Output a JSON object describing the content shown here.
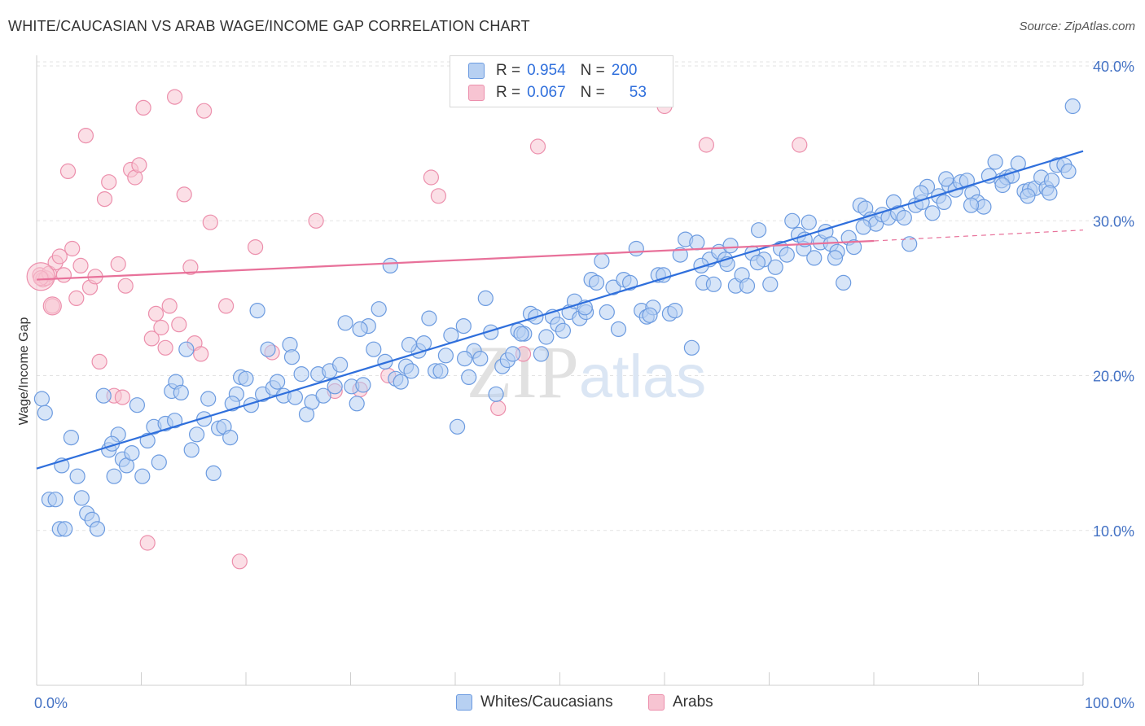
{
  "title": "WHITE/CAUCASIAN VS ARAB WAGE/INCOME GAP CORRELATION CHART",
  "source": "Source: ZipAtlas.com",
  "watermark": "ZIPatlas",
  "legend": {
    "row1": {
      "r_label": "R =",
      "r_value": "0.954",
      "n_label": "N =",
      "n_value": "200"
    },
    "row2": {
      "r_label": "R =",
      "r_value": "0.067",
      "n_label": "N =",
      "n_value": "53"
    }
  },
  "bottom_legend": {
    "series1": "Whites/Caucasians",
    "series2": "Arabs"
  },
  "colors": {
    "blue": "#2f6fdc",
    "blue_fill": "#b7d0f2",
    "blue_stroke": "#6c9be0",
    "pink": "#e8719a",
    "pink_fill": "#f7c4d2",
    "pink_stroke": "#ec8fac",
    "grid": "#e3e3e3",
    "axis_label": "#4472c4"
  },
  "chart_data": {
    "type": "scatter",
    "title": "WHITE/CAUCASIAN VS ARAB WAGE/INCOME GAP CORRELATION CHART",
    "xlabel": "",
    "ylabel": "Wage/Income Gap",
    "xlim": [
      0,
      100
    ],
    "ylim": [
      0,
      41
    ],
    "x_tick_labels": [
      "0.0%",
      "100.0%"
    ],
    "y_ticks": [
      10,
      20,
      30,
      40
    ],
    "y_tick_labels": [
      "10.0%",
      "20.0%",
      "30.0%",
      "40.0%"
    ],
    "grid": true,
    "legend_position": "top-center",
    "series": [
      {
        "name": "Whites/Caucasians",
        "color": "#2f6fdc",
        "R": 0.954,
        "N": 200,
        "trend": {
          "x": [
            0,
            100
          ],
          "y": [
            14.0,
            34.5
          ]
        },
        "points": [
          [
            0.5,
            18.5
          ],
          [
            0.8,
            17.6
          ],
          [
            1.2,
            12.0
          ],
          [
            1.8,
            12.0
          ],
          [
            2.2,
            10.1
          ],
          [
            2.7,
            10.1
          ],
          [
            3.3,
            16.0
          ],
          [
            3.9,
            13.5
          ],
          [
            4.3,
            12.1
          ],
          [
            4.8,
            11.1
          ],
          [
            5.3,
            10.7
          ],
          [
            5.8,
            10.1
          ],
          [
            6.4,
            18.7
          ],
          [
            6.9,
            15.2
          ],
          [
            7.4,
            13.5
          ],
          [
            7.8,
            16.2
          ],
          [
            8.2,
            14.6
          ],
          [
            8.6,
            14.2
          ],
          [
            9.1,
            15.0
          ],
          [
            9.6,
            18.1
          ],
          [
            10.1,
            13.5
          ],
          [
            10.6,
            15.8
          ],
          [
            11.2,
            16.7
          ],
          [
            11.7,
            14.4
          ],
          [
            12.3,
            16.9
          ],
          [
            12.9,
            19.0
          ],
          [
            13.3,
            19.6
          ],
          [
            13.8,
            18.9
          ],
          [
            14.3,
            21.7
          ],
          [
            14.8,
            15.2
          ],
          [
            15.3,
            16.2
          ],
          [
            16.0,
            17.2
          ],
          [
            16.4,
            18.5
          ],
          [
            16.9,
            13.7
          ],
          [
            17.4,
            16.6
          ],
          [
            17.9,
            16.7
          ],
          [
            18.5,
            16.0
          ],
          [
            19.1,
            18.8
          ],
          [
            19.5,
            19.9
          ],
          [
            20.0,
            19.8
          ],
          [
            20.5,
            18.1
          ],
          [
            21.1,
            24.2
          ],
          [
            21.6,
            18.8
          ],
          [
            22.1,
            21.7
          ],
          [
            22.6,
            19.2
          ],
          [
            23.0,
            19.6
          ],
          [
            23.6,
            18.7
          ],
          [
            24.2,
            22.0
          ],
          [
            24.7,
            18.6
          ],
          [
            25.3,
            20.1
          ],
          [
            25.8,
            17.5
          ],
          [
            26.3,
            18.3
          ],
          [
            26.9,
            20.1
          ],
          [
            27.4,
            18.7
          ],
          [
            28.0,
            20.3
          ],
          [
            28.5,
            19.3
          ],
          [
            29.0,
            20.7
          ],
          [
            29.5,
            23.4
          ],
          [
            30.1,
            19.3
          ],
          [
            30.6,
            18.2
          ],
          [
            31.2,
            19.4
          ],
          [
            31.7,
            23.2
          ],
          [
            32.2,
            21.7
          ],
          [
            32.7,
            24.3
          ],
          [
            33.3,
            20.9
          ],
          [
            33.8,
            27.1
          ],
          [
            34.3,
            19.8
          ],
          [
            34.8,
            19.6
          ],
          [
            35.3,
            20.6
          ],
          [
            35.8,
            20.3
          ],
          [
            36.5,
            21.6
          ],
          [
            37.0,
            22.1
          ],
          [
            37.5,
            23.7
          ],
          [
            38.1,
            20.3
          ],
          [
            38.6,
            20.3
          ],
          [
            39.1,
            21.3
          ],
          [
            39.6,
            22.6
          ],
          [
            40.2,
            16.7
          ],
          [
            40.8,
            23.2
          ],
          [
            41.3,
            19.9
          ],
          [
            41.8,
            21.6
          ],
          [
            42.4,
            21.1
          ],
          [
            42.9,
            25.0
          ],
          [
            43.4,
            22.8
          ],
          [
            43.9,
            18.8
          ],
          [
            44.5,
            20.6
          ],
          [
            45.0,
            21.0
          ],
          [
            45.5,
            21.4
          ],
          [
            46.0,
            22.9
          ],
          [
            46.6,
            22.7
          ],
          [
            47.2,
            24.0
          ],
          [
            47.7,
            23.8
          ],
          [
            48.2,
            21.4
          ],
          [
            48.7,
            22.5
          ],
          [
            49.3,
            23.8
          ],
          [
            49.8,
            23.3
          ],
          [
            50.3,
            22.9
          ],
          [
            50.9,
            24.1
          ],
          [
            51.4,
            24.8
          ],
          [
            51.9,
            23.7
          ],
          [
            52.5,
            24.1
          ],
          [
            53.0,
            26.2
          ],
          [
            53.5,
            26.0
          ],
          [
            54.0,
            27.4
          ],
          [
            54.5,
            24.1
          ],
          [
            55.1,
            25.7
          ],
          [
            55.6,
            23.0
          ],
          [
            56.1,
            26.2
          ],
          [
            56.7,
            26.0
          ],
          [
            57.3,
            28.2
          ],
          [
            57.8,
            24.2
          ],
          [
            58.3,
            23.8
          ],
          [
            58.9,
            24.4
          ],
          [
            59.4,
            26.5
          ],
          [
            59.9,
            26.5
          ],
          [
            60.5,
            24.0
          ],
          [
            61.0,
            24.2
          ],
          [
            61.5,
            27.8
          ],
          [
            62.0,
            28.8
          ],
          [
            62.6,
            21.8
          ],
          [
            63.1,
            28.6
          ],
          [
            63.7,
            26.0
          ],
          [
            64.3,
            27.5
          ],
          [
            64.7,
            25.9
          ],
          [
            65.2,
            28.0
          ],
          [
            65.8,
            27.5
          ],
          [
            66.3,
            28.4
          ],
          [
            66.8,
            25.8
          ],
          [
            67.4,
            26.5
          ],
          [
            67.9,
            25.8
          ],
          [
            68.4,
            27.9
          ],
          [
            69.0,
            29.4
          ],
          [
            69.5,
            27.5
          ],
          [
            70.1,
            25.9
          ],
          [
            70.6,
            27.0
          ],
          [
            71.1,
            28.2
          ],
          [
            71.7,
            27.8
          ],
          [
            72.2,
            30.0
          ],
          [
            72.8,
            29.1
          ],
          [
            73.3,
            28.2
          ],
          [
            73.8,
            29.9
          ],
          [
            74.3,
            27.6
          ],
          [
            74.9,
            28.6
          ],
          [
            75.4,
            29.3
          ],
          [
            75.9,
            28.5
          ],
          [
            76.5,
            28.0
          ],
          [
            77.1,
            26.0
          ],
          [
            77.6,
            28.9
          ],
          [
            78.1,
            28.3
          ],
          [
            78.7,
            31.0
          ],
          [
            79.2,
            30.8
          ],
          [
            79.7,
            30.1
          ],
          [
            80.2,
            29.8
          ],
          [
            80.8,
            30.4
          ],
          [
            81.4,
            30.2
          ],
          [
            81.9,
            31.2
          ],
          [
            82.3,
            30.5
          ],
          [
            82.9,
            30.2
          ],
          [
            83.4,
            28.5
          ],
          [
            84.0,
            31.0
          ],
          [
            84.6,
            31.2
          ],
          [
            85.1,
            32.2
          ],
          [
            85.6,
            30.5
          ],
          [
            86.2,
            31.6
          ],
          [
            86.7,
            31.2
          ],
          [
            87.2,
            32.3
          ],
          [
            87.8,
            32.0
          ],
          [
            88.3,
            32.5
          ],
          [
            88.9,
            32.6
          ],
          [
            89.4,
            31.8
          ],
          [
            89.9,
            31.2
          ],
          [
            90.5,
            30.9
          ],
          [
            91.0,
            32.9
          ],
          [
            91.6,
            33.8
          ],
          [
            92.2,
            32.6
          ],
          [
            92.7,
            32.8
          ],
          [
            93.2,
            32.9
          ],
          [
            93.8,
            33.7
          ],
          [
            94.4,
            31.9
          ],
          [
            94.9,
            32.0
          ],
          [
            95.4,
            32.1
          ],
          [
            96.0,
            32.8
          ],
          [
            96.5,
            32.1
          ],
          [
            97.0,
            32.6
          ],
          [
            97.5,
            33.6
          ],
          [
            98.2,
            33.6
          ],
          [
            99.0,
            37.4
          ],
          [
            96.8,
            31.8
          ],
          [
            94.7,
            31.6
          ],
          [
            92.3,
            32.3
          ],
          [
            89.3,
            31.0
          ],
          [
            86.9,
            32.7
          ],
          [
            84.5,
            31.8
          ],
          [
            79.0,
            29.6
          ],
          [
            76.3,
            27.6
          ],
          [
            73.4,
            28.8
          ],
          [
            68.9,
            27.3
          ],
          [
            66.0,
            27.2
          ],
          [
            63.5,
            27.1
          ],
          [
            58.6,
            23.9
          ],
          [
            52.4,
            24.4
          ],
          [
            46.3,
            22.7
          ],
          [
            40.9,
            21.1
          ],
          [
            35.6,
            22.0
          ],
          [
            30.9,
            23.0
          ],
          [
            24.4,
            21.2
          ],
          [
            18.7,
            18.2
          ],
          [
            13.2,
            17.1
          ],
          [
            7.2,
            15.6
          ],
          [
            2.4,
            14.2
          ],
          [
            98.6,
            33.2
          ]
        ]
      },
      {
        "name": "Arabs",
        "color": "#e8719a",
        "R": 0.067,
        "N": 53,
        "trend": {
          "x": [
            0,
            80
          ],
          "y": [
            26.2,
            28.7
          ]
        },
        "trend_dashed_to": {
          "x": 100,
          "y": 29.4
        },
        "points": [
          [
            0.3,
            26.5
          ],
          [
            0.6,
            26.2
          ],
          [
            0.9,
            26.3
          ],
          [
            1.2,
            26.6
          ],
          [
            1.5,
            24.5
          ],
          [
            1.8,
            27.3
          ],
          [
            2.2,
            27.7
          ],
          [
            2.6,
            26.5
          ],
          [
            3.0,
            33.2
          ],
          [
            3.4,
            28.2
          ],
          [
            3.8,
            25.0
          ],
          [
            4.2,
            27.1
          ],
          [
            4.7,
            35.5
          ],
          [
            5.1,
            25.7
          ],
          [
            5.6,
            26.4
          ],
          [
            6.0,
            20.9
          ],
          [
            6.5,
            31.4
          ],
          [
            6.9,
            32.5
          ],
          [
            7.4,
            18.7
          ],
          [
            7.8,
            27.2
          ],
          [
            8.2,
            18.6
          ],
          [
            8.5,
            25.8
          ],
          [
            9.0,
            33.3
          ],
          [
            9.4,
            32.8
          ],
          [
            9.8,
            33.6
          ],
          [
            10.2,
            37.3
          ],
          [
            10.6,
            9.2
          ],
          [
            11.0,
            22.4
          ],
          [
            11.4,
            24.0
          ],
          [
            11.9,
            23.1
          ],
          [
            12.3,
            21.8
          ],
          [
            12.7,
            24.5
          ],
          [
            13.2,
            38.0
          ],
          [
            13.6,
            23.3
          ],
          [
            14.1,
            31.7
          ],
          [
            14.7,
            27.0
          ],
          [
            15.1,
            22.1
          ],
          [
            15.7,
            21.4
          ],
          [
            16.0,
            37.1
          ],
          [
            16.6,
            29.9
          ],
          [
            18.1,
            24.5
          ],
          [
            19.4,
            8.0
          ],
          [
            20.9,
            28.3
          ],
          [
            22.5,
            21.5
          ],
          [
            26.7,
            30.0
          ],
          [
            28.5,
            19.0
          ],
          [
            30.9,
            19.1
          ],
          [
            33.6,
            20.0
          ],
          [
            37.7,
            32.8
          ],
          [
            38.4,
            31.6
          ],
          [
            44.1,
            17.9
          ],
          [
            46.5,
            21.4
          ],
          [
            47.9,
            34.8
          ],
          [
            60.0,
            37.4
          ],
          [
            64.0,
            34.9
          ],
          [
            72.9,
            34.9
          ],
          [
            0.4,
            26.3
          ]
        ]
      }
    ]
  }
}
